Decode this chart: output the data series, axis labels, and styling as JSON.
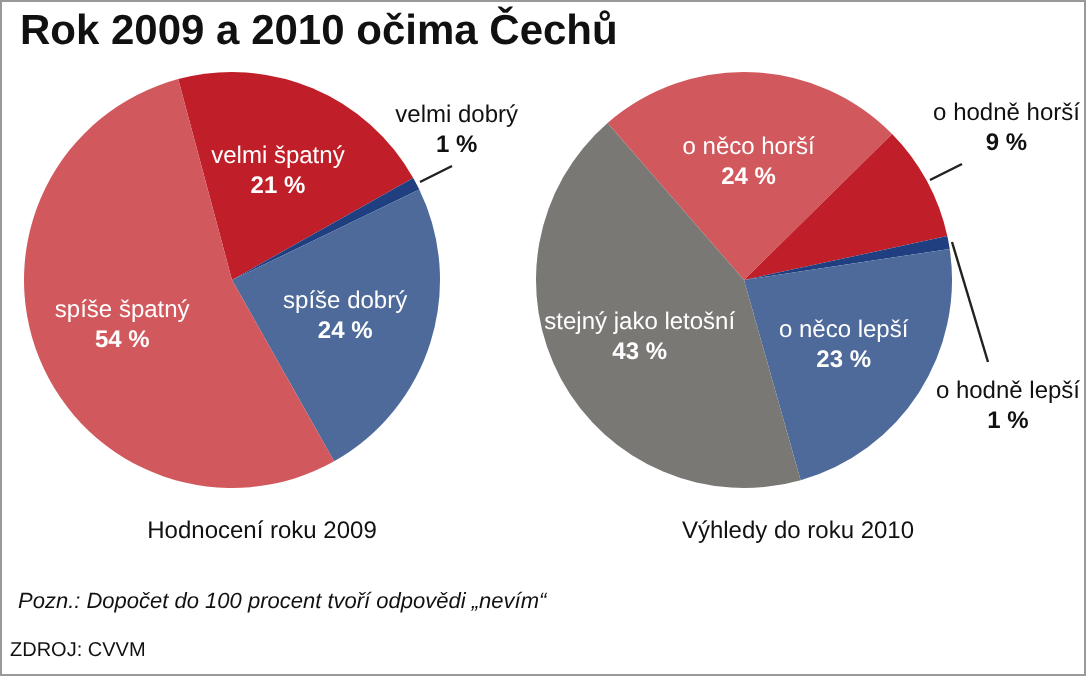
{
  "chart_data": [
    {
      "type": "pie",
      "title": "Rok 2009 a 2010 očima Čechů",
      "xlabel": "Hodnocení roku 2009",
      "categories": [
        "velmi špatný",
        "velmi dobrý",
        "spíše dobrý",
        "spíše špatný"
      ],
      "values": [
        21,
        1,
        24,
        54
      ],
      "value_labels": [
        "21 %",
        "1 %",
        "24 %",
        "54 %"
      ],
      "colors": [
        "#c01e28",
        "#1f3f80",
        "#4e6a9a",
        "#d1585c"
      ],
      "legend": false,
      "annotations": [
        "Pozn.: Dopočet do 100 procent tvoří odpovědi „nevím“",
        "ZDROJ: CVVM"
      ]
    },
    {
      "type": "pie",
      "xlabel": "Výhledy do roku 2010",
      "categories": [
        "o něco horší",
        "o hodně horší",
        "o hodně lepší",
        "o něco lepší",
        "stejný jako letošní"
      ],
      "values": [
        24,
        9,
        1,
        23,
        43
      ],
      "value_labels": [
        "24 %",
        "9 %",
        "1 %",
        "23 %",
        "43 %"
      ],
      "colors": [
        "#d1585c",
        "#c01e28",
        "#1f3f80",
        "#4e6a9a",
        "#7a7874"
      ],
      "legend": false
    }
  ]
}
